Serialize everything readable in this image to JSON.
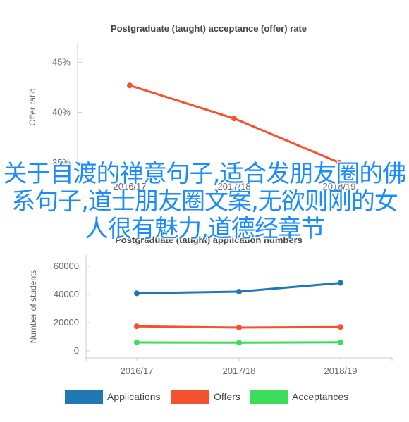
{
  "chart_data": [
    {
      "type": "line",
      "title": "Postgraduate (taught) acceptance (offer) rate",
      "ylabel": "Offer ratio",
      "categories": [
        "2016/17",
        "2017/18",
        "2018/19"
      ],
      "ytick_labels": [
        "35%",
        "40%",
        "45%"
      ],
      "ylim": [
        34,
        47
      ],
      "series": [
        {
          "values": [
            42.7,
            39.4,
            35.0
          ],
          "color": "#f4522e"
        }
      ]
    },
    {
      "type": "line",
      "title": "Postgraduate (taught) application numbers",
      "ylabel": "Number of students",
      "categories": [
        "2016/17",
        "2017/18",
        "2018/19"
      ],
      "ytick_labels": [
        "0",
        "20000",
        "40000",
        "60000"
      ],
      "ylim": [
        -5000,
        68000
      ],
      "legend_position": "bottom",
      "series": [
        {
          "name": "Applications",
          "values": [
            40800,
            42000,
            48200
          ],
          "color": "#1f77b4"
        },
        {
          "name": "Offers",
          "values": [
            17400,
            16500,
            16900
          ],
          "color": "#f4522e"
        },
        {
          "name": "Acceptances",
          "values": [
            6000,
            5900,
            6100
          ],
          "color": "#3ddc5a"
        }
      ]
    }
  ],
  "overlay_text": "关于自渡的禅意句子,适合发朋友圈的佛系句子,道士朋友圈文案,无欲则刚的女人很有魅力,道德经章节"
}
